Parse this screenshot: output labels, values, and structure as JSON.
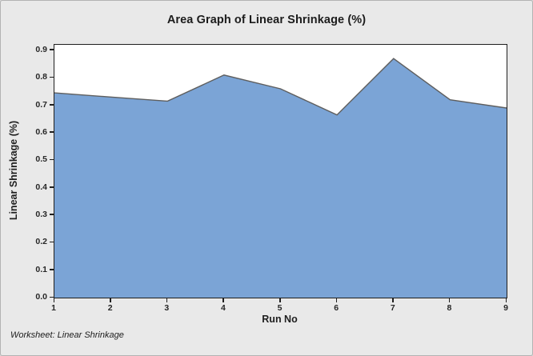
{
  "window": {
    "background_color": "#e9e9e9",
    "border_color": "#b3b3b3",
    "plot_background": "#ffffff",
    "frame_color": "#1f1f1f"
  },
  "chart_data": {
    "type": "area",
    "title": "Area Graph of Linear Shrinkage (%)",
    "xlabel": "Run No",
    "ylabel": "Linear Shrinkage (%)",
    "x": [
      1,
      2,
      3,
      4,
      5,
      6,
      7,
      8,
      9
    ],
    "values": [
      0.745,
      0.73,
      0.715,
      0.81,
      0.76,
      0.665,
      0.87,
      0.72,
      0.69
    ],
    "xticks": [
      "1",
      "2",
      "3",
      "4",
      "5",
      "6",
      "7",
      "8",
      "9"
    ],
    "yticks": [
      "0.0",
      "0.1",
      "0.2",
      "0.3",
      "0.4",
      "0.5",
      "0.6",
      "0.7",
      "0.8",
      "0.9"
    ],
    "ylim": [
      0,
      0.9
    ],
    "xlim": [
      1,
      9
    ],
    "grid": false,
    "legend": false,
    "fill_color": "#7ba4d6",
    "outline_color": "#5e5e5e"
  },
  "footer": {
    "worksheet_label": "Worksheet: Linear Shrinkage"
  }
}
